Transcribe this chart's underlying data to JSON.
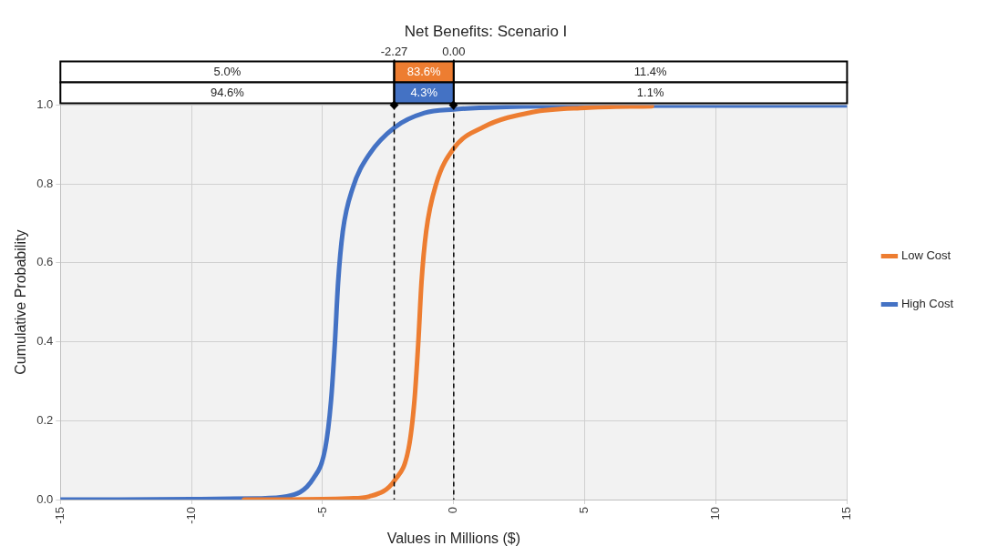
{
  "chart_data": {
    "type": "line",
    "title": "Net Benefits: Scenario I",
    "xlabel": "Values in Millions ($)",
    "ylabel": "Cumulative Probability",
    "series": [
      {
        "name": "Low Cost",
        "color": "#ed7d31",
        "x": [
          -8,
          -5,
          -4,
          -3.22,
          -2.24,
          -1.72,
          -1.5,
          -1.35,
          -1.23,
          -1.05,
          -0.67,
          0,
          1.12,
          3,
          5,
          7.56
        ],
        "values": [
          0,
          0.001,
          0.003,
          0.008,
          0.05,
          0.13,
          0.25,
          0.4,
          0.55,
          0.68,
          0.8,
          0.89,
          0.944,
          0.982,
          0.993,
          0.997
        ]
      },
      {
        "name": "High Cost",
        "color": "#4472c4",
        "x": [
          -15,
          -10,
          -7.5,
          -6.36,
          -5.35,
          -4.9,
          -4.68,
          -4.53,
          -4.41,
          -4.23,
          -3.85,
          -3.22,
          -2.24,
          -1.12,
          0,
          2,
          5,
          15
        ],
        "values": [
          0,
          0.001,
          0.003,
          0.008,
          0.054,
          0.13,
          0.25,
          0.4,
          0.55,
          0.68,
          0.79,
          0.875,
          0.944,
          0.98,
          0.989,
          0.995,
          0.998,
          0.999
        ]
      }
    ],
    "xlim": [
      -15,
      15
    ],
    "xticks": [
      -15,
      -10,
      -5,
      0,
      5,
      10,
      15
    ],
    "ylim": [
      0,
      1
    ],
    "yticks": [
      {
        "value": 0,
        "label": "0.0"
      },
      {
        "value": 0.2,
        "label": "0.2"
      },
      {
        "value": 0.4,
        "label": "0.4"
      },
      {
        "value": 0.6,
        "label": "0.6"
      },
      {
        "value": 0.8,
        "label": "0.8"
      },
      {
        "value": 1,
        "label": "1.0"
      }
    ],
    "ref_lines": [
      {
        "axis": "x",
        "value": -2.27,
        "label": "-2.27",
        "line_style": "dashed",
        "color": "#000000"
      },
      {
        "axis": "x",
        "value": 0,
        "label": "0.00",
        "line_style": "dashed",
        "color": "#000000"
      }
    ],
    "annotations": [
      "5.0%",
      "83.6%",
      "11.4%",
      "94.6%",
      "4.3%",
      "1.1%"
    ],
    "grid": true,
    "legend": "right",
    "marker": "none",
    "line_style": "solid"
  }
}
